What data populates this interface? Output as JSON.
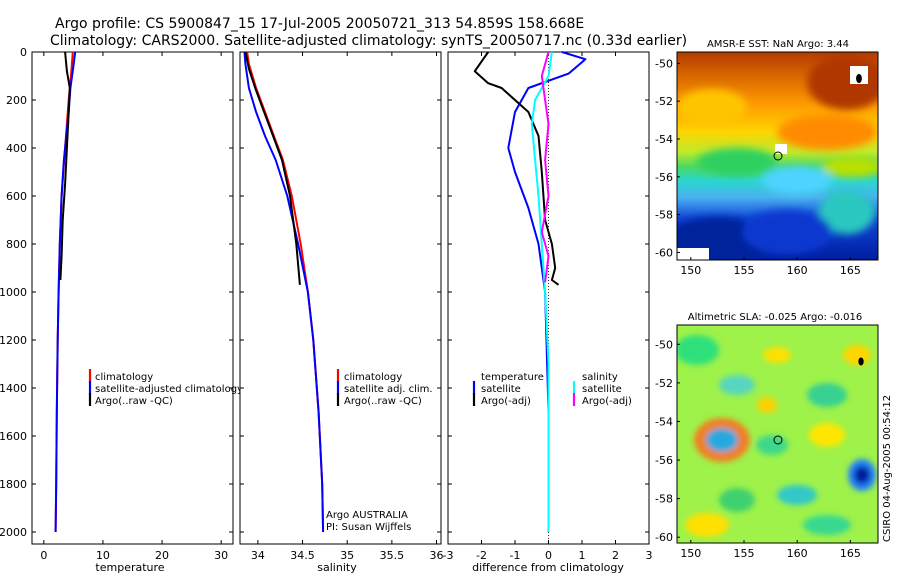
{
  "header": {
    "title_line1": "Argo profile: CS 5900847_15 17-Jul-2005 20050721_313 54.859S 158.668E",
    "title_line2": "Climatology: CARS2000. Satellite-adjusted climatology: synTS_20050717.nc (0.33d earlier)"
  },
  "colors": {
    "climatology": "#ff0000",
    "satellite": "#0000ff",
    "argo": "#000000",
    "salinity": "#ff00ff",
    "salinity_satellite": "#00ffff"
  },
  "chart_data": [
    {
      "type": "line",
      "id": "temperature",
      "xlabel": "temperature",
      "xlim": [
        -2,
        32
      ],
      "ylim": [
        2050,
        0
      ],
      "xticks": [
        "0",
        "10",
        "20",
        "30"
      ],
      "yticks": [
        "0",
        "200",
        "400",
        "600",
        "800",
        "1000",
        "1200",
        "1400",
        "1600",
        "1800",
        "2000"
      ],
      "legend": [
        "climatology",
        "satellite-adjusted climatology",
        "Argo(..raw -QC)"
      ],
      "series": [
        {
          "name": "climatology",
          "color": "#ff0000",
          "x": [
            4.9,
            4.6,
            4.2,
            3.9,
            3.6,
            3.3,
            3.0,
            2.7,
            2.5,
            2.35,
            2.2,
            2.1,
            2.0
          ],
          "y": [
            0,
            100,
            200,
            300,
            400,
            500,
            600,
            800,
            1000,
            1200,
            1500,
            1800,
            2000
          ]
        },
        {
          "name": "satellite-adjusted climatology",
          "color": "#0000ff",
          "x": [
            5.3,
            5.0,
            4.5,
            4.2,
            3.8,
            3.4,
            3.0,
            2.7,
            2.5,
            2.35,
            2.2,
            2.1,
            2.0
          ],
          "y": [
            0,
            60,
            150,
            250,
            350,
            450,
            600,
            800,
            1000,
            1200,
            1500,
            1800,
            2000
          ]
        },
        {
          "name": "Argo(..raw -QC)",
          "color": "#000000",
          "x": [
            3.6,
            3.9,
            4.4,
            4.2,
            4.0,
            3.8,
            3.6,
            3.2,
            3.0,
            2.8
          ],
          "y": [
            0,
            80,
            150,
            250,
            350,
            450,
            550,
            700,
            850,
            950
          ]
        }
      ]
    },
    {
      "type": "line",
      "id": "salinity",
      "xlabel": "salinity",
      "xlim": [
        33.8,
        36.05
      ],
      "ylim": [
        2050,
        0
      ],
      "xticks": [
        "34",
        "34.5",
        "35",
        "35.5",
        "36"
      ],
      "legend": [
        "climatology",
        "satellite adj. clim.",
        "Argo(..raw -QC)"
      ],
      "annotation": [
        "Argo AUSTRALIA",
        "PI: Susan Wijffels"
      ],
      "series": [
        {
          "name": "climatology",
          "color": "#ff0000",
          "x": [
            33.88,
            33.9,
            33.98,
            34.08,
            34.18,
            34.28,
            34.38,
            34.48,
            34.56,
            34.62,
            34.68,
            34.72,
            34.73
          ],
          "y": [
            0,
            50,
            150,
            250,
            350,
            450,
            600,
            800,
            1000,
            1200,
            1500,
            1800,
            2000
          ]
        },
        {
          "name": "satellite adj. clim.",
          "color": "#0000ff",
          "x": [
            33.85,
            33.86,
            33.9,
            33.98,
            34.08,
            34.2,
            34.33,
            34.45,
            34.56,
            34.62,
            34.68,
            34.72,
            34.73
          ],
          "y": [
            0,
            50,
            150,
            250,
            350,
            450,
            600,
            800,
            1000,
            1200,
            1500,
            1800,
            2000
          ]
        },
        {
          "name": "Argo(..raw -QC)",
          "color": "#000000",
          "x": [
            33.86,
            33.9,
            33.97,
            34.07,
            34.17,
            34.27,
            34.36,
            34.43,
            34.47
          ],
          "y": [
            0,
            70,
            150,
            250,
            350,
            450,
            600,
            800,
            970
          ]
        }
      ]
    },
    {
      "type": "line",
      "id": "difference",
      "xlabel": "difference from climatology",
      "xlim": [
        -3,
        3
      ],
      "ylim": [
        2050,
        0
      ],
      "xticks": [
        "-3",
        "-2",
        "-1",
        "0",
        "1",
        "2",
        "3"
      ],
      "legend_left": [
        "temperature",
        "satellite",
        "Argo(-adj)"
      ],
      "legend_right": [
        "salinity",
        "satellite",
        "Argo(-adj)"
      ],
      "series": [
        {
          "name": "temperature satellite",
          "color": "#0000ff",
          "x": [
            0.4,
            1.1,
            0.6,
            -0.6,
            -1.0,
            -1.2,
            -1.0,
            -0.6,
            -0.3,
            -0.1,
            0.0,
            0.0
          ],
          "y": [
            0,
            30,
            90,
            150,
            250,
            400,
            500,
            650,
            800,
            1000,
            1500,
            2000
          ]
        },
        {
          "name": "temperature Argo(-adj)",
          "color": "#000000",
          "x": [
            -1.8,
            -2.2,
            -1.8,
            -1.4,
            -0.6,
            -0.3,
            -0.2,
            -0.1,
            0.1,
            0.2,
            0.1,
            0.3
          ],
          "y": [
            0,
            80,
            130,
            150,
            250,
            350,
            500,
            700,
            800,
            900,
            950,
            970
          ]
        },
        {
          "name": "salinity satellite",
          "color": "#00ffff",
          "x": [
            0.1,
            0.0,
            -0.4,
            -0.5,
            -0.4,
            -0.3,
            -0.2,
            -0.1,
            0.0,
            0.0
          ],
          "y": [
            0,
            100,
            200,
            300,
            450,
            600,
            800,
            1000,
            1300,
            2000
          ]
        },
        {
          "name": "salinity Argo(-adj)",
          "color": "#ff00ff",
          "x": [
            0.0,
            -0.2,
            -0.1,
            0.0,
            -0.1,
            0.0,
            -0.2,
            0.0,
            -0.1
          ],
          "y": [
            0,
            100,
            200,
            300,
            450,
            600,
            750,
            850,
            960
          ]
        }
      ]
    },
    {
      "type": "heatmap",
      "id": "sst-map",
      "title": "AMSR-E SST: NaN Argo: 3.44",
      "xticks": [
        "150",
        "155",
        "160",
        "165"
      ],
      "yticks": [
        "-50",
        "-52",
        "-54",
        "-56",
        "-58",
        "-60"
      ],
      "float_position": [
        158.668,
        -54.859
      ]
    },
    {
      "type": "heatmap",
      "id": "sla-map",
      "title": "Altimetric SLA: -0.025 Argo: -0.016",
      "xticks": [
        "150",
        "155",
        "160",
        "165"
      ],
      "yticks": [
        "-50",
        "-52",
        "-54",
        "-56",
        "-58",
        "-60"
      ],
      "float_position": [
        158.668,
        -54.859
      ]
    }
  ],
  "footer": {
    "credit": "CSIRO 04-Aug-2005 00:54:12"
  }
}
